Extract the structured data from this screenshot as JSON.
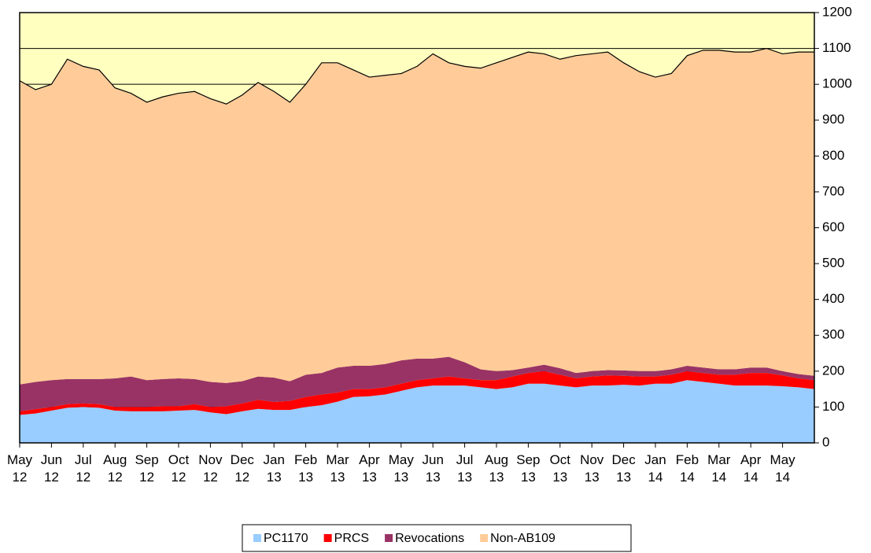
{
  "chart_data": {
    "type": "stacked_area",
    "categories": [
      [
        "May",
        "12"
      ],
      null,
      [
        "Jun",
        "12"
      ],
      null,
      [
        "Jul",
        "12"
      ],
      null,
      [
        "Aug",
        "12"
      ],
      null,
      [
        "Sep",
        "12"
      ],
      null,
      [
        "Oct",
        "12"
      ],
      null,
      [
        "Nov",
        "12"
      ],
      null,
      [
        "Dec",
        "12"
      ],
      null,
      [
        "Jan",
        "13"
      ],
      null,
      [
        "Feb",
        "13"
      ],
      null,
      [
        "Mar",
        "13"
      ],
      null,
      [
        "Apr",
        "13"
      ],
      null,
      [
        "May",
        "13"
      ],
      null,
      [
        "Jun",
        "13"
      ],
      null,
      [
        "Jul",
        "13"
      ],
      null,
      [
        "Aug",
        "13"
      ],
      null,
      [
        "Sep",
        "13"
      ],
      null,
      [
        "Oct",
        "13"
      ],
      null,
      [
        "Nov",
        "13"
      ],
      null,
      [
        "Dec",
        "13"
      ],
      null,
      [
        "Jan",
        "14"
      ],
      null,
      [
        "Feb",
        "14"
      ],
      null,
      [
        "Mar",
        "14"
      ],
      null,
      [
        "Apr",
        "14"
      ],
      null,
      [
        "May",
        "14"
      ],
      null,
      null
    ],
    "series": [
      {
        "name": "PC1170",
        "color": "#99ccff",
        "values": [
          78,
          82,
          90,
          98,
          100,
          98,
          90,
          88,
          88,
          88,
          90,
          92,
          85,
          80,
          88,
          95,
          92,
          92,
          100,
          105,
          115,
          128,
          130,
          135,
          145,
          155,
          160,
          160,
          160,
          155,
          150,
          155,
          165,
          165,
          160,
          155,
          160,
          160,
          162,
          160,
          165,
          165,
          175,
          170,
          165,
          160,
          160,
          160,
          158,
          155,
          150
        ]
      },
      {
        "name": "PRCS",
        "color": "#ff0000",
        "values": [
          10,
          12,
          10,
          10,
          10,
          10,
          10,
          12,
          12,
          14,
          12,
          16,
          15,
          22,
          22,
          25,
          22,
          25,
          28,
          30,
          25,
          22,
          20,
          20,
          20,
          20,
          20,
          25,
          20,
          20,
          25,
          30,
          30,
          35,
          30,
          25,
          25,
          28,
          25,
          25,
          20,
          25,
          25,
          25,
          25,
          30,
          35,
          35,
          30,
          25,
          25
        ]
      },
      {
        "name": "Revocations",
        "color": "#993366",
        "values": [
          75,
          76,
          75,
          70,
          68,
          70,
          80,
          85,
          75,
          76,
          78,
          70,
          70,
          65,
          62,
          65,
          68,
          55,
          62,
          60,
          70,
          65,
          65,
          65,
          65,
          60,
          55,
          55,
          45,
          30,
          25,
          18,
          15,
          18,
          18,
          15,
          15,
          15,
          15,
          15,
          15,
          15,
          15,
          15,
          15,
          15,
          15,
          15,
          12,
          12,
          12
        ]
      },
      {
        "name": "Non-AB109",
        "color": "#ffcc99",
        "values": [
          847,
          815,
          825,
          892,
          872,
          862,
          810,
          790,
          775,
          787,
          795,
          802,
          790,
          778,
          798,
          820,
          798,
          778,
          810,
          865,
          850,
          825,
          805,
          805,
          800,
          815,
          850,
          820,
          825,
          840,
          860,
          872,
          880,
          867,
          862,
          885,
          885,
          887,
          858,
          835,
          820,
          825,
          865,
          885,
          890,
          885,
          880,
          890,
          885,
          898,
          903
        ]
      }
    ],
    "ylim": [
      0,
      1200
    ],
    "yticks": [
      0,
      100,
      200,
      300,
      400,
      500,
      600,
      700,
      800,
      900,
      1000,
      1100,
      1200
    ],
    "grid": true,
    "background": "#ffffc0",
    "legend": "bottom"
  }
}
